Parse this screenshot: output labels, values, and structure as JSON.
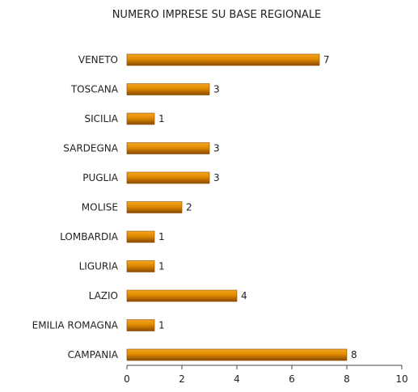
{
  "chart_data": {
    "type": "bar",
    "orientation": "horizontal",
    "title": "NUMERO IMPRESE SU BASE REGIONALE",
    "categories": [
      "VENETO",
      "TOSCANA",
      "SICILIA",
      "SARDEGNA",
      "PUGLIA",
      "MOLISE",
      "LOMBARDIA",
      "LIGURIA",
      "LAZIO",
      "EMILIA ROMAGNA",
      "CAMPANIA"
    ],
    "values": [
      7,
      3,
      1,
      3,
      3,
      2,
      1,
      1,
      4,
      1,
      8
    ],
    "xlim": [
      0,
      10
    ],
    "xticks": [
      0,
      2,
      4,
      6,
      8,
      10
    ],
    "xlabel": "",
    "ylabel": "",
    "grid": false,
    "colors": {
      "bar_light": "#f5a623",
      "bar_mid": "#e08a00",
      "bar_dark": "#8a4a00",
      "axis": "#444444"
    }
  }
}
